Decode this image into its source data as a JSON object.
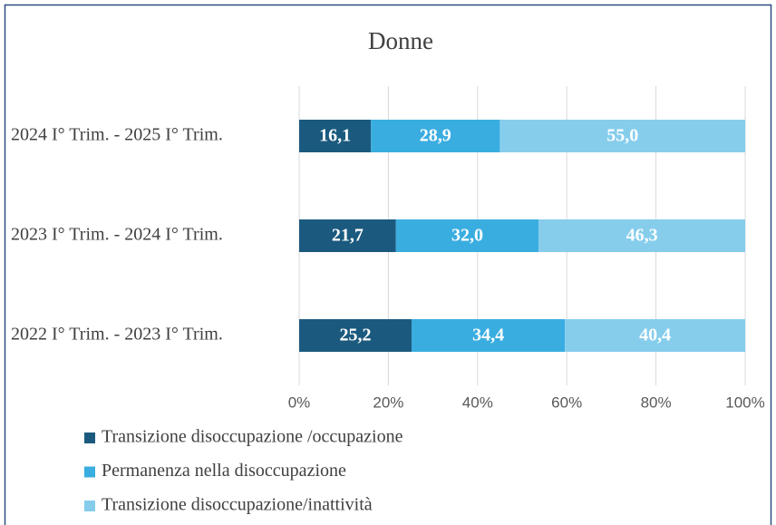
{
  "chart_data": {
    "type": "bar",
    "orientation": "horizontal",
    "stacked": true,
    "title": "Donne",
    "categories": [
      "2024 I° Trim. - 2025 I° Trim.",
      "2023 I° Trim. - 2024 I° Trim.",
      "2022 I° Trim. - 2023 I° Trim."
    ],
    "series": [
      {
        "name": "Transizione disoccupazione /occupazione",
        "color": "#1b5a7e",
        "values": [
          16.1,
          21.7,
          25.2
        ],
        "value_labels": [
          "16,1",
          "21,7",
          "25,2"
        ]
      },
      {
        "name": "Permanenza nella disoccupazione",
        "color": "#3aade0",
        "values": [
          28.9,
          32.0,
          34.4
        ],
        "value_labels": [
          "28,9",
          "32,0",
          "34,4"
        ]
      },
      {
        "name": "Transizione disoccupazione/inattività",
        "color": "#86cdec",
        "values": [
          55.0,
          46.3,
          40.4
        ],
        "value_labels": [
          "55,0",
          "46,3",
          "40,4"
        ]
      }
    ],
    "xlim": [
      0,
      100
    ],
    "xticks": [
      {
        "value": 0,
        "label": "0%"
      },
      {
        "value": 20,
        "label": "20%"
      },
      {
        "value": 40,
        "label": "40%"
      },
      {
        "value": 60,
        "label": "60%"
      },
      {
        "value": 80,
        "label": "80%"
      },
      {
        "value": 100,
        "label": "100%"
      }
    ],
    "grid": true,
    "legend": "bottom"
  }
}
